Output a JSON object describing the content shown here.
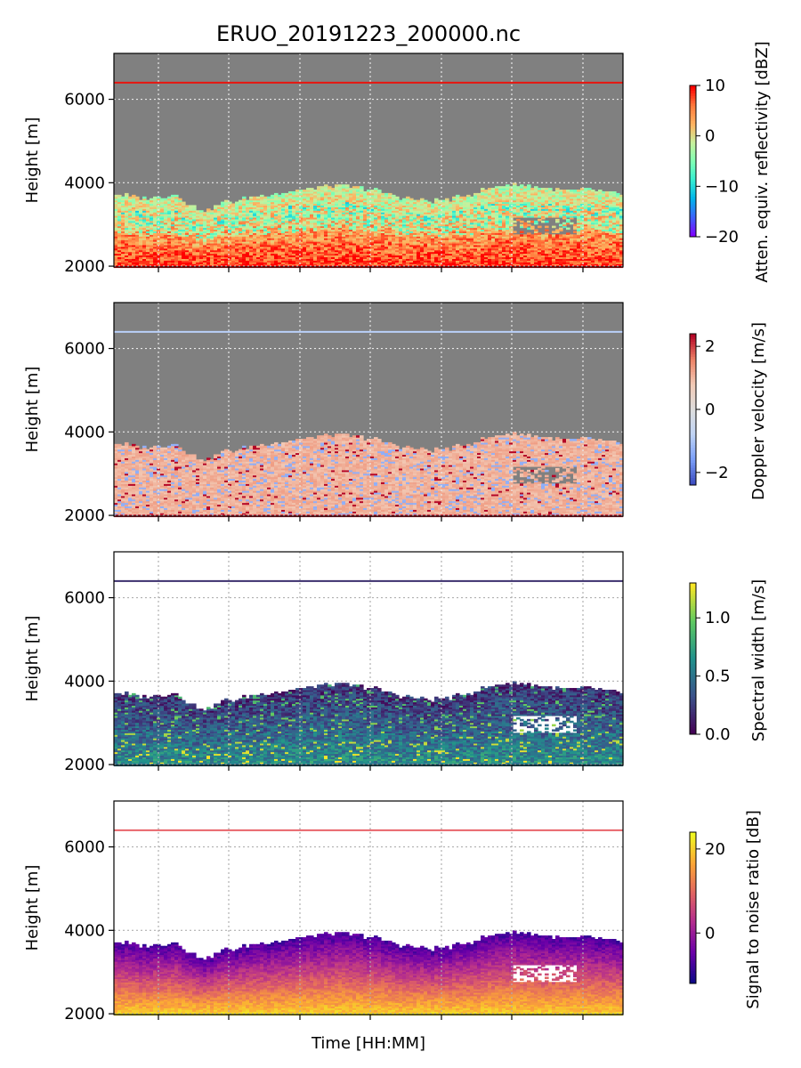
{
  "chart_data": [
    {
      "type": "heatmap",
      "title": "ERUO_20191223_200000.nc",
      "ylabel": "Height [m]",
      "yticks": [
        2000,
        4000,
        6000
      ],
      "ylim": [
        1980,
        7100
      ],
      "xtick_count": 7,
      "grid": true,
      "background": "gray",
      "colorbar": {
        "label": "Atten. equiv. reflectivity [dBZ]",
        "range": [
          -20,
          10
        ],
        "ticks": [
          10,
          0,
          -10,
          -20
        ],
        "tick_labels": [
          "10",
          "0",
          "−10",
          "−20"
        ],
        "colormap": "rainbow"
      },
      "reference_line": {
        "y": 6400,
        "color": "#e8150e"
      },
      "echo_top_profile": [
        3700,
        3650,
        3600,
        3650,
        3700,
        3400,
        3300,
        3500,
        3550,
        3650,
        3700,
        3750,
        3800,
        3850,
        3900,
        3900,
        3850,
        3800,
        3700,
        3600,
        3550,
        3550,
        3600,
        3700,
        3800,
        3900,
        3950,
        3900,
        3850,
        3800,
        3800,
        3800,
        3750,
        3700
      ]
    },
    {
      "type": "heatmap",
      "ylabel": "Height [m]",
      "yticks": [
        2000,
        4000,
        6000
      ],
      "ylim": [
        1980,
        7100
      ],
      "xtick_count": 7,
      "grid": true,
      "background": "gray",
      "colorbar": {
        "label": "Doppler velocity [m/s]",
        "range": [
          -2.4,
          2.4
        ],
        "ticks": [
          2,
          0,
          -2
        ],
        "tick_labels": [
          "2",
          "0",
          "−2"
        ],
        "colormap": "coolwarm"
      },
      "reference_line": {
        "y": 6400,
        "color": "#b9d0f9"
      }
    },
    {
      "type": "heatmap",
      "ylabel": "Height [m]",
      "yticks": [
        2000,
        4000,
        6000
      ],
      "ylim": [
        1980,
        7100
      ],
      "xtick_count": 7,
      "grid": true,
      "background": "white",
      "colorbar": {
        "label": "Spectral width [m/s]",
        "range": [
          0,
          1.3
        ],
        "ticks": [
          1.0,
          0.5,
          0.0
        ],
        "tick_labels": [
          "1.0",
          "0.5",
          "0.0"
        ],
        "colormap": "viridis"
      },
      "reference_line": {
        "y": 6400,
        "color": "#3b2f6e"
      }
    },
    {
      "type": "heatmap",
      "ylabel": "Height [m]",
      "xlabel": "Time [HH:MM]",
      "yticks": [
        2000,
        4000,
        6000
      ],
      "ylim": [
        1980,
        7100
      ],
      "xtick_count": 7,
      "grid": true,
      "background": "white",
      "colorbar": {
        "label": "Signal to noise ratio [dB]",
        "range": [
          -12,
          24
        ],
        "ticks": [
          20,
          0
        ],
        "tick_labels": [
          "20",
          "0"
        ],
        "colormap": "plasma"
      },
      "reference_line": {
        "y": 6400,
        "color": "#e8646a"
      }
    }
  ]
}
